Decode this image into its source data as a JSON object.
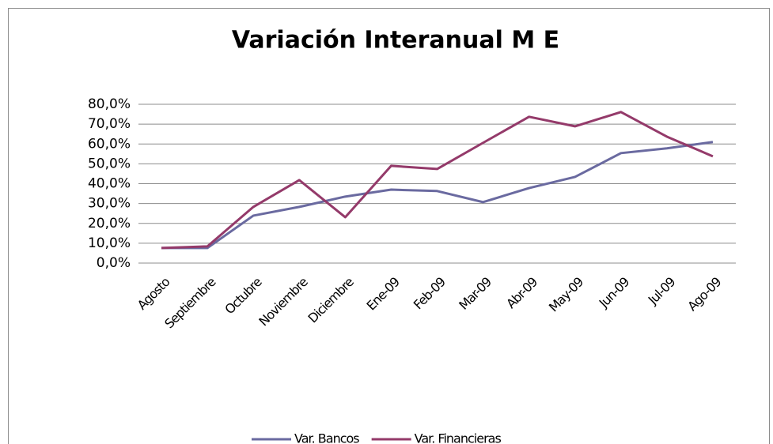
{
  "chart_data": {
    "type": "line",
    "title": "Variación Interanual M E",
    "categories": [
      "Agosto",
      "Septiembre",
      "Octubre",
      "Noviembre",
      "Diciembre",
      "Ene-09",
      "Feb-09",
      "Mar-09",
      "Abr-09",
      "May-09",
      "Jun-09",
      "Jul-09",
      "Ago-09"
    ],
    "series": [
      {
        "name": "Var. Bancos",
        "color": "#6a6aa0",
        "values": [
          7.6,
          7.6,
          23.9,
          28.3,
          33.5,
          37.0,
          36.3,
          30.7,
          37.8,
          43.4,
          55.4,
          57.8,
          61.0
        ]
      },
      {
        "name": "Var. Financieras",
        "color": "#943a6a",
        "values": [
          7.6,
          8.4,
          28.3,
          41.8,
          23.1,
          49.0,
          47.4,
          60.6,
          73.7,
          68.9,
          76.1,
          63.7,
          53.8
        ]
      }
    ],
    "ylim": [
      0,
      80
    ],
    "yticks": [
      {
        "value": 0,
        "label": "0,0%"
      },
      {
        "value": 10,
        "label": "10,0%"
      },
      {
        "value": 20,
        "label": "20,0%"
      },
      {
        "value": 30,
        "label": "30,0%"
      },
      {
        "value": 40,
        "label": "40,0%"
      },
      {
        "value": 50,
        "label": "50,0%"
      },
      {
        "value": 60,
        "label": "60,0%"
      },
      {
        "value": 70,
        "label": "70,0%"
      },
      {
        "value": 80,
        "label": "80,0%"
      }
    ],
    "grid": true,
    "legend": "bottom"
  }
}
